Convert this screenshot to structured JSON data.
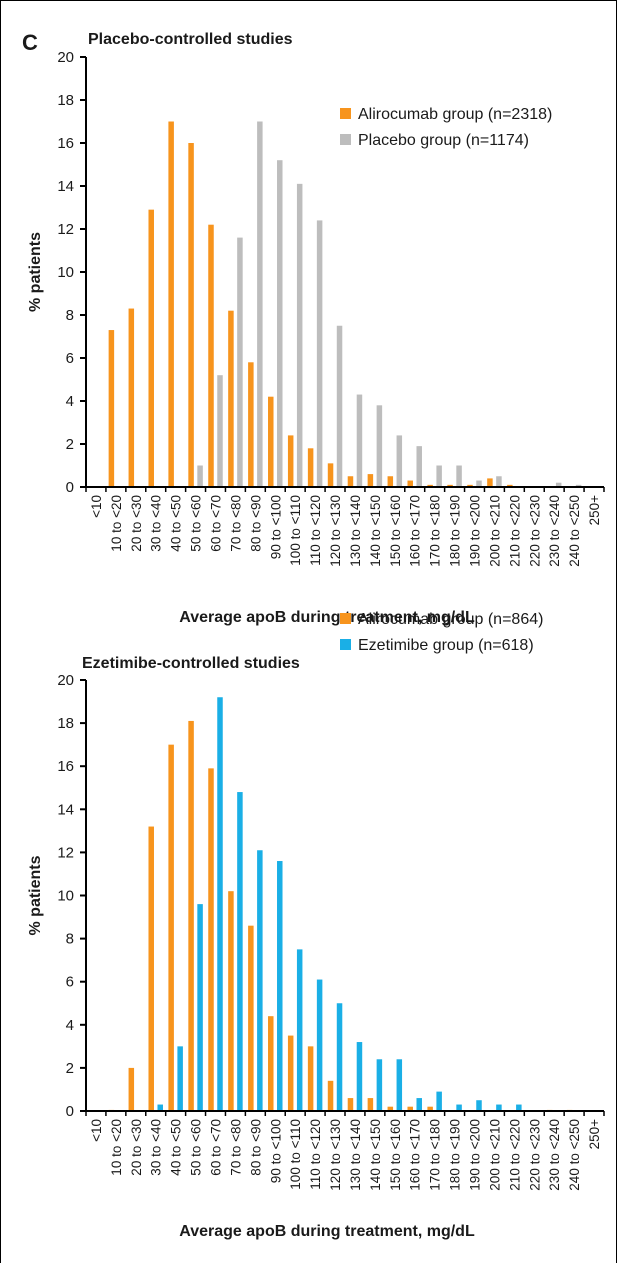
{
  "panel_letter": "C",
  "colors": {
    "alirocumab": "#F7941D",
    "placebo": "#BDBDBD",
    "ezetimibe": "#1AAFE6",
    "axis": "#000000"
  },
  "chart_data": [
    {
      "type": "bar",
      "title": "Placebo-controlled studies",
      "xlabel": "Average apoB during treatment, mg/dL",
      "ylabel": "% patients",
      "ylim": [
        0,
        20
      ],
      "yticks": [
        0,
        2,
        4,
        6,
        8,
        10,
        12,
        14,
        16,
        18,
        20
      ],
      "grid": false,
      "legend_position": "top-right",
      "categories": [
        "<10",
        "10 to <20",
        "20 to <30",
        "30 to <40",
        "40 to <50",
        "50 to <60",
        "60 to <70",
        "70 to <80",
        "80 to <90",
        "90 to <100",
        "100 to <110",
        "110 to <120",
        "120 to <130",
        "130 to <140",
        "140 to <150",
        "150 to <160",
        "160 to <170",
        "170 to <180",
        "180 to <190",
        "190 to <200",
        "200 to <210",
        "210 to <220",
        "220 to <230",
        "230 to <240",
        "240 to <250",
        "250+"
      ],
      "series": [
        {
          "name": "Alirocumab group (n=2318)",
          "color": "#F7941D",
          "values": [
            0,
            7.3,
            8.3,
            12.9,
            17.0,
            16.0,
            12.2,
            8.2,
            5.8,
            4.2,
            2.4,
            1.8,
            1.1,
            0.5,
            0.6,
            0.5,
            0.3,
            0.1,
            0.1,
            0.1,
            0.4,
            0.1,
            0,
            0,
            0,
            0
          ]
        },
        {
          "name": "Placebo group (n=1174)",
          "color": "#BDBDBD",
          "values": [
            0,
            0,
            0,
            0,
            0,
            1.0,
            5.2,
            11.6,
            17.0,
            15.2,
            14.1,
            12.4,
            7.5,
            4.3,
            3.8,
            2.4,
            1.9,
            1.0,
            1.0,
            0.3,
            0.5,
            0,
            0,
            0.2,
            0.1,
            0
          ]
        }
      ]
    },
    {
      "type": "bar",
      "title": "Ezetimibe-controlled studies",
      "xlabel": "Average apoB during treatment, mg/dL",
      "ylabel": "% patients",
      "ylim": [
        0,
        20
      ],
      "yticks": [
        0,
        2,
        4,
        6,
        8,
        10,
        12,
        14,
        16,
        18,
        20
      ],
      "grid": false,
      "legend_position": "top-right",
      "categories": [
        "<10",
        "10 to <20",
        "20 to <30",
        "30 to <40",
        "40 to <50",
        "50 to <60",
        "60 to <70",
        "70 to <80",
        "80 to <90",
        "90 to <100",
        "100 to <110",
        "110 to <120",
        "120 to <130",
        "130 to <140",
        "140 to <150",
        "150 to <160",
        "160 to <170",
        "170 to <180",
        "180 to <190",
        "190 to <200",
        "200 to <210",
        "210 to <220",
        "220 to <230",
        "230 to <240",
        "240 to <250",
        "250+"
      ],
      "series": [
        {
          "name": "Alirocumab group (n=864)",
          "color": "#F7941D",
          "values": [
            0,
            0.05,
            2.0,
            13.2,
            17.0,
            18.1,
            15.9,
            10.2,
            8.6,
            4.4,
            3.5,
            3.0,
            1.4,
            0.6,
            0.6,
            0.2,
            0.2,
            0.2,
            0,
            0,
            0,
            0,
            0,
            0.05,
            0.05,
            0
          ]
        },
        {
          "name": "Ezetimibe group (n=618)",
          "color": "#1AAFE6",
          "values": [
            0,
            0,
            0,
            0.3,
            3.0,
            9.6,
            19.2,
            14.8,
            12.1,
            11.6,
            7.5,
            6.1,
            5.0,
            3.2,
            2.4,
            2.4,
            0.6,
            0.9,
            0.3,
            0.5,
            0.3,
            0.3,
            0,
            0,
            0,
            0
          ]
        }
      ]
    }
  ]
}
